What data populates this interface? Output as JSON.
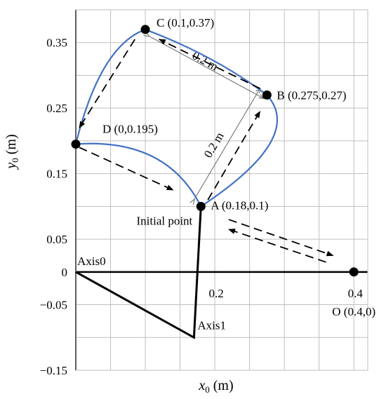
{
  "chart_data": {
    "type": "scatter",
    "xlabel": {
      "main": "x",
      "sub": "0",
      "unit": " (m)"
    },
    "ylabel": {
      "main": "y",
      "sub": "0",
      "unit": " (m)"
    },
    "xlim": [
      0,
      0.42
    ],
    "ylim": [
      -0.15,
      0.4
    ],
    "grid": true,
    "x_gridlines": [
      0,
      0.05,
      0.1,
      0.15,
      0.2,
      0.25,
      0.3,
      0.35,
      0.4
    ],
    "y_gridlines": [
      -0.15,
      -0.1,
      -0.05,
      0,
      0.05,
      0.1,
      0.15,
      0.2,
      0.25,
      0.3,
      0.35,
      0.4
    ],
    "x_tick_labels": [
      {
        "value": 0.2,
        "text": "0.2"
      },
      {
        "value": 0.4,
        "text": "0.4"
      }
    ],
    "y_tick_labels": [
      {
        "value": 0.35,
        "text": "0.35"
      },
      {
        "value": 0.25,
        "text": "0.25"
      },
      {
        "value": 0.15,
        "text": "0.15"
      },
      {
        "value": 0.05,
        "text": "0.05"
      },
      {
        "value": 0,
        "text": "0"
      },
      {
        "value": -0.05,
        "text": "−0.05"
      },
      {
        "value": -0.15,
        "text": "−0.15"
      }
    ],
    "points": [
      {
        "id": "A",
        "x": 0.18,
        "y": 0.1,
        "label": "A (0.18,0.1)"
      },
      {
        "id": "B",
        "x": 0.275,
        "y": 0.27,
        "label": "B (0.275,0.27)"
      },
      {
        "id": "C",
        "x": 0.1,
        "y": 0.37,
        "label": "C (0.1,0.37)"
      },
      {
        "id": "D",
        "x": 0,
        "y": 0.195,
        "label": "D (0,0.195)"
      },
      {
        "id": "O",
        "x": 0.4,
        "y": 0,
        "label": "O (0.4,0)"
      }
    ],
    "arm": {
      "points": [
        [
          0,
          0
        ],
        [
          0.17,
          -0.1
        ],
        [
          0.18,
          0.1
        ]
      ],
      "joint_labels": [
        "Axis0",
        "Axis1"
      ]
    },
    "workspace_curve": {
      "color": "#4472c4",
      "segments": [
        {
          "from": "A",
          "to": "B",
          "control": [
            0.33,
            0.205
          ]
        },
        {
          "from": "B",
          "to": "C",
          "control": [
            0.2,
            0.33
          ]
        },
        {
          "from": "C",
          "to": "D",
          "control": [
            0.035,
            0.345
          ]
        },
        {
          "from": "D",
          "to": "A",
          "control": [
            0.13,
            0.205
          ]
        }
      ]
    },
    "dimension_lines": [
      {
        "from": [
          0.17,
          0.11
        ],
        "to": [
          0.265,
          0.28
        ],
        "label": "0.2 m"
      },
      {
        "from": [
          0.105,
          0.36
        ],
        "to": [
          0.27,
          0.265
        ],
        "label": "0.2 m"
      }
    ],
    "dashed_arrows": [
      {
        "from": [
          0.005,
          0.19
        ],
        "to": [
          0.14,
          0.125
        ]
      },
      {
        "from": [
          0.19,
          0.11
        ],
        "to": [
          0.265,
          0.245
        ]
      },
      {
        "from": [
          0.265,
          0.28
        ],
        "to": [
          0.12,
          0.355
        ]
      },
      {
        "from": [
          0.085,
          0.355
        ],
        "to": [
          0.005,
          0.22
        ]
      },
      {
        "from": [
          0.36,
          0.015
        ],
        "to": [
          0.22,
          0.065
        ]
      },
      {
        "from": [
          0.22,
          0.08
        ],
        "to": [
          0.37,
          0.025
        ]
      }
    ],
    "annotations": [
      {
        "text": "Initial point"
      }
    ]
  }
}
